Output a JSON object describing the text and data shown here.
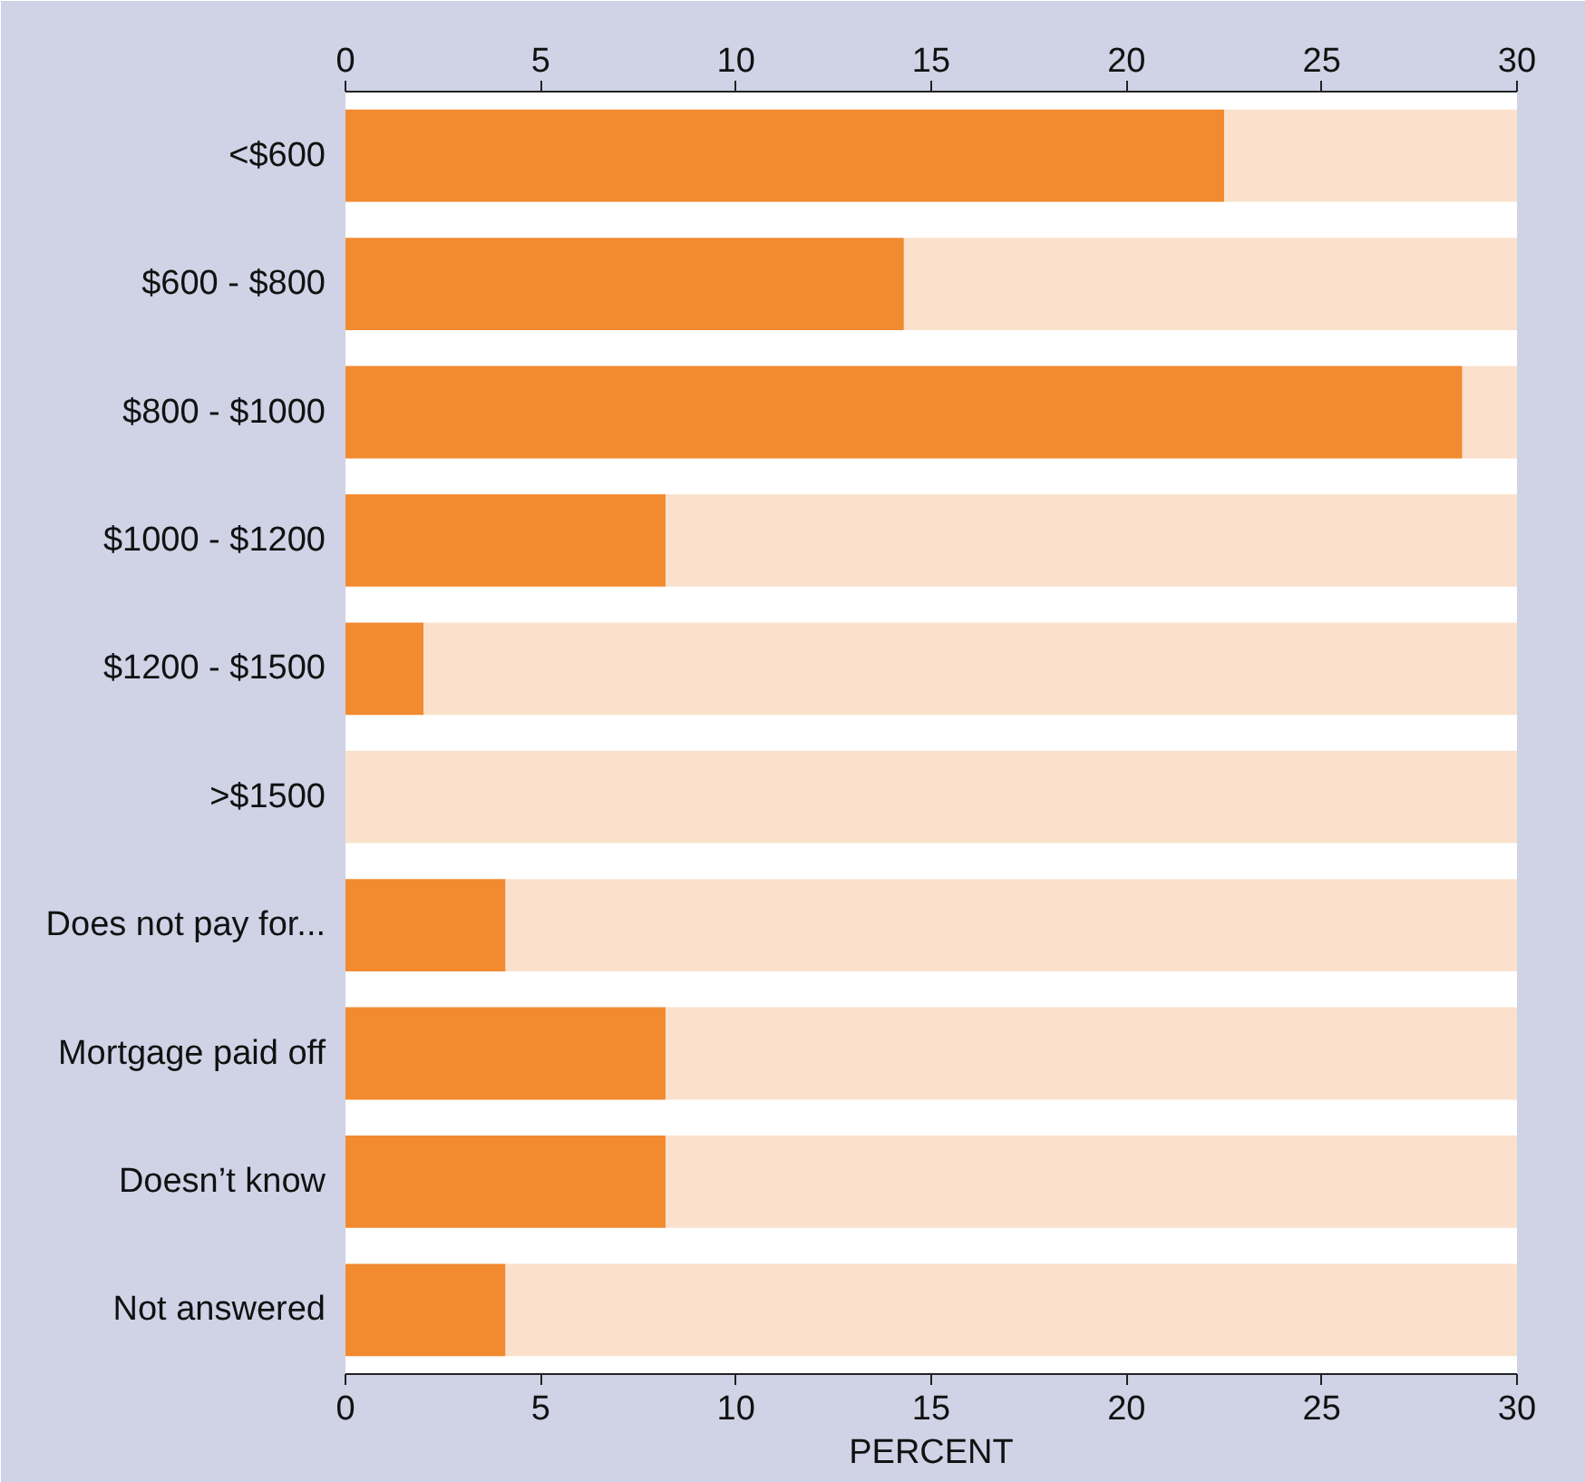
{
  "chart_data": {
    "type": "bar",
    "orientation": "horizontal",
    "stacked": true,
    "xlabel": "PERCENT",
    "categories": [
      "<$600",
      "$600 - $800",
      "$800 - $1000",
      "$1000 - $1200",
      "$1200 - $1500",
      ">$1500",
      "Does not pay for...",
      "Mortgage paid off",
      "Doesn’t know",
      "Not answered"
    ],
    "series": [
      {
        "color": "#f28a30",
        "values": [
          22.5,
          14.3,
          28.6,
          8.2,
          2.0,
          0,
          4.1,
          8.2,
          8.2,
          4.1
        ]
      },
      {
        "color": "#fbe1cb",
        "values": [
          7.5,
          15.7,
          1.4,
          21.8,
          28.0,
          30,
          25.9,
          21.8,
          21.8,
          25.9
        ]
      }
    ],
    "xlim": [
      0,
      30
    ],
    "xticks": [
      0,
      5,
      10,
      15,
      20,
      25,
      30
    ],
    "x2lim": [
      0,
      30
    ],
    "x2ticks": [
      0,
      5,
      10,
      15,
      20,
      25,
      30
    ],
    "grid": false
  }
}
